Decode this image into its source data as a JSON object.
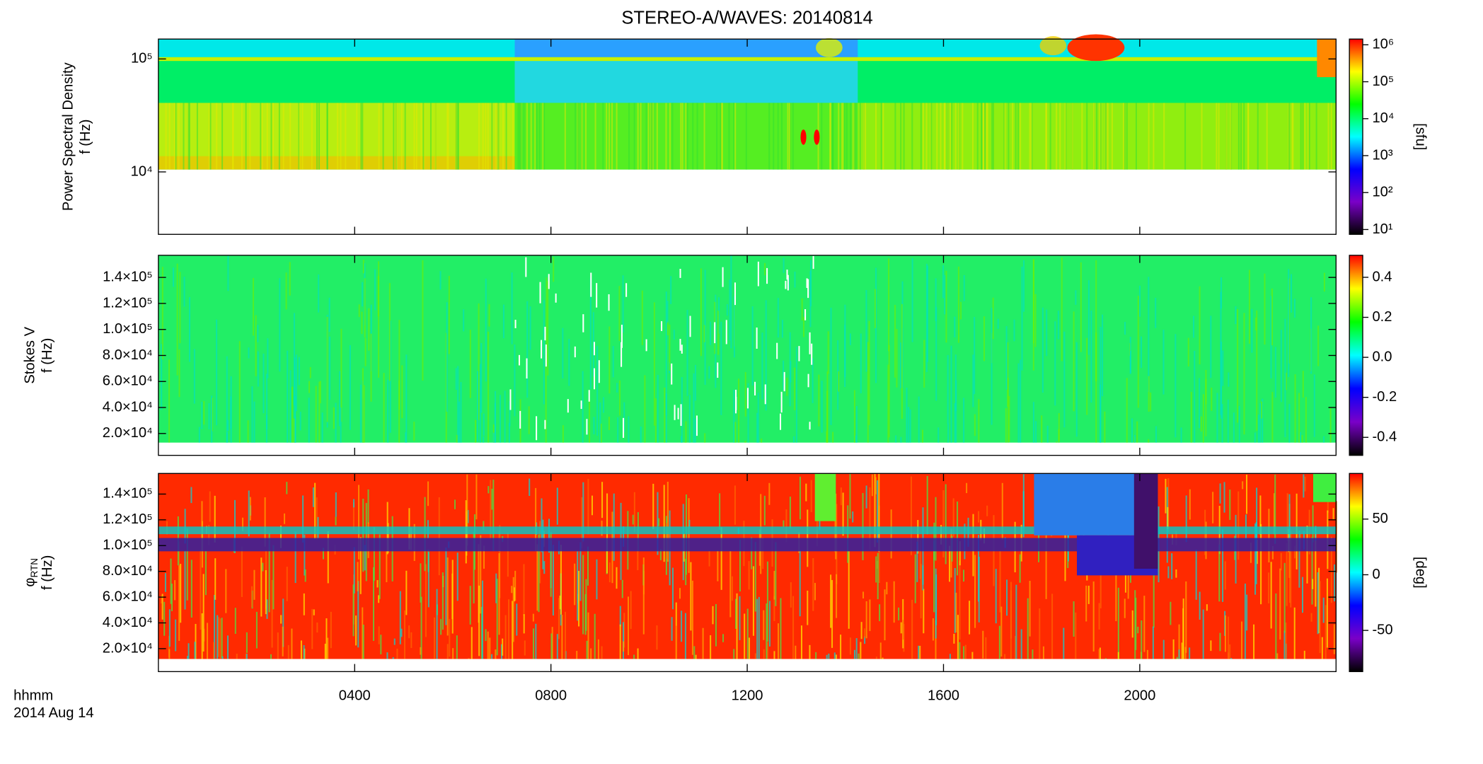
{
  "title": "STEREO-A/WAVES: 20140814",
  "xlabel": "hhmm",
  "date": "2014 Aug 14",
  "chart_data": [
    {
      "type": "spectrogram",
      "ylabel": "Power Spectral Density",
      "ylabel2": "f (Hz)",
      "ylog": true,
      "ylim": [
        2800,
        150000
      ],
      "yticks": [
        {
          "value": 10000,
          "label": "10⁴"
        },
        {
          "value": 100000,
          "label": "10⁵"
        }
      ],
      "clog": true,
      "clim": [
        7.4,
        1430000
      ],
      "cticks": [
        {
          "value": 10,
          "label": "10¹"
        },
        {
          "value": 100,
          "label": "10²"
        },
        {
          "value": 1000,
          "label": "10³"
        },
        {
          "value": 10000,
          "label": "10⁴"
        },
        {
          "value": 100000,
          "label": "10⁵"
        },
        {
          "value": 1000000,
          "label": "10⁶"
        }
      ],
      "clabel": "[sfu]",
      "colormap": [
        "#000000",
        "#7a00c8",
        "#0000ff",
        "#00ffff",
        "#00ff00",
        "#ffff00",
        "#ff0000"
      ]
    },
    {
      "type": "spectrogram",
      "ylabel": "Stokes V",
      "ylabel2": "f (Hz)",
      "ylog": false,
      "ylim": [
        3200,
        157000
      ],
      "yticks": [
        {
          "value": 20000,
          "label": "2.0×10⁴"
        },
        {
          "value": 40000,
          "label": "4.0×10⁴"
        },
        {
          "value": 60000,
          "label": "6.0×10⁴"
        },
        {
          "value": 80000,
          "label": "8.0×10⁴"
        },
        {
          "value": 100000,
          "label": "1.0×10⁵"
        },
        {
          "value": 120000,
          "label": "1.2×10⁵"
        },
        {
          "value": 140000,
          "label": "1.4×10⁵"
        }
      ],
      "clog": false,
      "clim": [
        -0.49,
        0.51
      ],
      "cticks": [
        -0.4,
        -0.2,
        {
          "value": 0,
          "label": "0.0"
        },
        0.2,
        0.4
      ],
      "colormap": [
        "#000000",
        "#7a00c8",
        "#0000ff",
        "#00ffff",
        "#00ff00",
        "#ffff00",
        "#ff0000"
      ]
    },
    {
      "type": "spectrogram",
      "ylabel": "φ",
      "ylabel_sub": "RTN",
      "ylabel2": "f (Hz)",
      "ylog": false,
      "ylim": [
        2200,
        156000
      ],
      "yticks": [
        {
          "value": 20000,
          "label": "2.0×10⁴"
        },
        {
          "value": 40000,
          "label": "4.0×10⁴"
        },
        {
          "value": 60000,
          "label": "6.0×10⁴"
        },
        {
          "value": 80000,
          "label": "8.0×10⁴"
        },
        {
          "value": 100000,
          "label": "1.0×10⁵"
        },
        {
          "value": 120000,
          "label": "1.2×10⁵"
        },
        {
          "value": 140000,
          "label": "1.4×10⁵"
        }
      ],
      "clog": false,
      "clim": [
        -87,
        91
      ],
      "cticks": [
        -50,
        0,
        50
      ],
      "clabel": "[deg]",
      "colormap": [
        "#000000",
        "#7a00c8",
        "#0000ff",
        "#00ffff",
        "#00ff00",
        "#ffff00",
        "#ff0000"
      ],
      "xlim": [
        0,
        2400
      ],
      "xticks": [
        {
          "value": 400,
          "label": "0400"
        },
        {
          "value": 800,
          "label": "0800"
        },
        {
          "value": 1200,
          "label": "1200"
        },
        {
          "value": 1600,
          "label": "1600"
        },
        {
          "value": 2000,
          "label": "2000"
        }
      ]
    }
  ]
}
